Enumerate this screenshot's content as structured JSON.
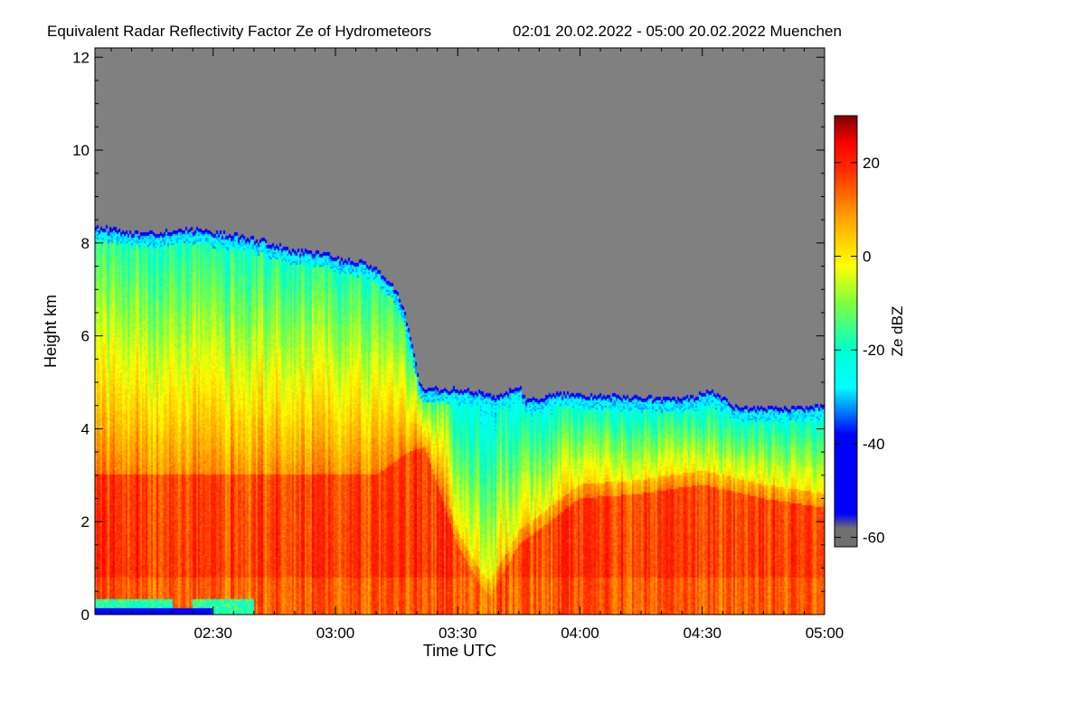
{
  "chart_data": {
    "type": "heatmap",
    "title": "Equivalent Radar Reflectivity Factor Ze of Hydrometeors",
    "subtitle": "02:01 20.02.2022 - 05:00 20.02.2022 Muenchen",
    "xlabel": "Time UTC",
    "ylabel": "Height km",
    "x_range_minutes_utc": [
      121,
      300
    ],
    "y_range_km": [
      0,
      12.2
    ],
    "x_ticks": [
      {
        "minute": 150,
        "label": "02:30"
      },
      {
        "minute": 180,
        "label": "03:00"
      },
      {
        "minute": 210,
        "label": "03:30"
      },
      {
        "minute": 240,
        "label": "04:00"
      },
      {
        "minute": 270,
        "label": "04:30"
      },
      {
        "minute": 300,
        "label": "05:00"
      }
    ],
    "y_ticks": [
      {
        "value": 0,
        "label": "0"
      },
      {
        "value": 2,
        "label": "2"
      },
      {
        "value": 4,
        "label": "4"
      },
      {
        "value": 6,
        "label": "6"
      },
      {
        "value": 8,
        "label": "8"
      },
      {
        "value": 10,
        "label": "10"
      },
      {
        "value": 12,
        "label": "12"
      }
    ],
    "colorbar": {
      "label": "Ze dBZ",
      "range": [
        -62,
        30
      ],
      "ticks": [
        {
          "value": 20,
          "label": "20"
        },
        {
          "value": 0,
          "label": "0"
        },
        {
          "value": -20,
          "label": "-20"
        },
        {
          "value": -40,
          "label": "-40"
        },
        {
          "value": -60,
          "label": "-60"
        }
      ],
      "colormap": [
        {
          "v": -62,
          "c": "#707070"
        },
        {
          "v": -58,
          "c": "#707070"
        },
        {
          "v": -55,
          "c": "#0000ff"
        },
        {
          "v": -38,
          "c": "#0000ff"
        },
        {
          "v": -28,
          "c": "#00ffff"
        },
        {
          "v": -20,
          "c": "#00ffcc"
        },
        {
          "v": -10,
          "c": "#80ff40"
        },
        {
          "v": -2,
          "c": "#ffff00"
        },
        {
          "v": 8,
          "c": "#ffa500"
        },
        {
          "v": 18,
          "c": "#ff3000"
        },
        {
          "v": 24,
          "c": "#ff0000"
        },
        {
          "v": 30,
          "c": "#800000"
        }
      ]
    },
    "no_data_color": "#808080",
    "echo_top_km": [
      {
        "minute": 121,
        "top": 8.35
      },
      {
        "minute": 125,
        "top": 8.3
      },
      {
        "minute": 132,
        "top": 8.2
      },
      {
        "minute": 137,
        "top": 8.25
      },
      {
        "minute": 145,
        "top": 8.3
      },
      {
        "minute": 150,
        "top": 8.25
      },
      {
        "minute": 160,
        "top": 8.1
      },
      {
        "minute": 170,
        "top": 7.85
      },
      {
        "minute": 176,
        "top": 7.8
      },
      {
        "minute": 180,
        "top": 7.7
      },
      {
        "minute": 186,
        "top": 7.6
      },
      {
        "minute": 190,
        "top": 7.45
      },
      {
        "minute": 195,
        "top": 7.0
      },
      {
        "minute": 197,
        "top": 6.5
      },
      {
        "minute": 199,
        "top": 5.8
      },
      {
        "minute": 200,
        "top": 5.3
      },
      {
        "minute": 201,
        "top": 4.9
      },
      {
        "minute": 205,
        "top": 4.85
      },
      {
        "minute": 210,
        "top": 4.85
      },
      {
        "minute": 215,
        "top": 4.8
      },
      {
        "minute": 220,
        "top": 4.7
      },
      {
        "minute": 225,
        "top": 4.95
      },
      {
        "minute": 227,
        "top": 4.6
      },
      {
        "minute": 233,
        "top": 4.75
      },
      {
        "minute": 240,
        "top": 4.75
      },
      {
        "minute": 250,
        "top": 4.7
      },
      {
        "minute": 260,
        "top": 4.65
      },
      {
        "minute": 268,
        "top": 4.7
      },
      {
        "minute": 272,
        "top": 4.85
      },
      {
        "minute": 278,
        "top": 4.5
      },
      {
        "minute": 285,
        "top": 4.45
      },
      {
        "minute": 292,
        "top": 4.45
      },
      {
        "minute": 300,
        "top": 4.5
      }
    ],
    "rain_layer_top_km": [
      {
        "minute": 121,
        "top": 3.0
      },
      {
        "minute": 150,
        "top": 3.0
      },
      {
        "minute": 175,
        "top": 3.0
      },
      {
        "minute": 190,
        "top": 3.0
      },
      {
        "minute": 198,
        "top": 3.5
      },
      {
        "minute": 202,
        "top": 3.6
      },
      {
        "minute": 210,
        "top": 1.5
      },
      {
        "minute": 215,
        "top": 0.7
      },
      {
        "minute": 218,
        "top": 0.4
      },
      {
        "minute": 225,
        "top": 1.5
      },
      {
        "minute": 240,
        "top": 2.5
      },
      {
        "minute": 255,
        "top": 2.6
      },
      {
        "minute": 270,
        "top": 2.8
      },
      {
        "minute": 285,
        "top": 2.5
      },
      {
        "minute": 300,
        "top": 2.3
      }
    ]
  }
}
